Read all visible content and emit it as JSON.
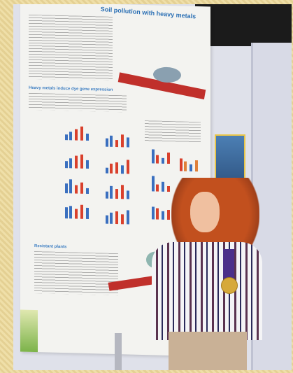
{
  "poster": {
    "title": "Soil pollution with heavy metals",
    "sections": [
      {
        "heading": "Heavy metals induce dye gene expression"
      },
      {
        "heading": "Resistant plants"
      }
    ]
  }
}
